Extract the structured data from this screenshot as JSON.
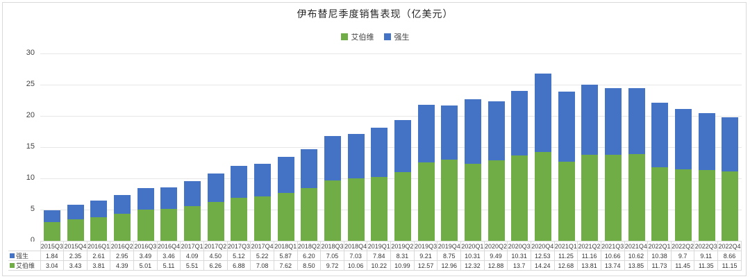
{
  "chart_data": {
    "type": "bar",
    "stacked": true,
    "title": "伊布替尼季度销售表现（亿美元）",
    "xlabel": "",
    "ylabel": "",
    "ylim": [
      0,
      30
    ],
    "yticks": [
      0,
      5,
      10,
      15,
      20,
      25,
      30
    ],
    "grid": true,
    "legend_position": "top",
    "categories": [
      "2015Q3",
      "2015Q4",
      "2016Q1",
      "2016Q2",
      "2016Q3",
      "2016Q4",
      "2017Q1",
      "2017Q2",
      "2017Q3",
      "2017Q4",
      "2018Q1",
      "2018Q2",
      "2018Q3",
      "2018Q4",
      "2019Q1",
      "2019Q2",
      "2019Q3",
      "2019Q4",
      "2020Q1",
      "2020Q2",
      "2020Q3",
      "2020Q4",
      "2021Q1",
      "2021Q2",
      "2021Q3",
      "2021Q4",
      "2022Q1",
      "2022Q2",
      "2022Q3",
      "2022Q4"
    ],
    "series": [
      {
        "key": "abbvie",
        "name": "艾伯维",
        "color": "#70AD47",
        "values": [
          3.04,
          3.43,
          3.81,
          4.39,
          5.01,
          5.11,
          5.51,
          6.26,
          6.88,
          7.08,
          7.62,
          8.5,
          9.72,
          10.06,
          10.22,
          10.99,
          12.57,
          12.96,
          12.32,
          12.88,
          13.7,
          14.24,
          12.68,
          13.81,
          13.74,
          13.85,
          11.73,
          11.45,
          11.35,
          11.15
        ]
      },
      {
        "key": "jnj",
        "name": "强生",
        "color": "#4472C4",
        "values": [
          1.84,
          2.35,
          2.61,
          2.95,
          3.49,
          3.46,
          4.09,
          4.5,
          5.12,
          5.22,
          5.87,
          6.2,
          7.05,
          7.03,
          7.84,
          8.31,
          9.21,
          8.75,
          10.31,
          9.49,
          10.31,
          12.53,
          11.25,
          11.16,
          10.66,
          10.62,
          10.38,
          9.7,
          9.11,
          8.66
        ]
      }
    ],
    "legend_order": [
      "abbvie",
      "jnj"
    ],
    "data_table": {
      "rows": [
        {
          "key": "jnj",
          "label": "强生",
          "color": "#4472C4",
          "values": [
            "1.84",
            "2.35",
            "2.61",
            "2.95",
            "3.49",
            "3.46",
            "4.09",
            "4.50",
            "5.12",
            "5.22",
            "5.87",
            "6.20",
            "7.05",
            "7.03",
            "7.84",
            "8.31",
            "9.21",
            "8.75",
            "10.31",
            "9.49",
            "10.31",
            "12.53",
            "11.25",
            "11.16",
            "10.66",
            "10.62",
            "10.38",
            "9.7",
            "9.11",
            "8.66"
          ]
        },
        {
          "key": "abbvie",
          "label": "艾伯维",
          "color": "#70AD47",
          "values": [
            "3.04",
            "3.43",
            "3.81",
            "4.39",
            "5.01",
            "5.11",
            "5.51",
            "6.26",
            "6.88",
            "7.08",
            "7.62",
            "8.50",
            "9.72",
            "10.06",
            "10.22",
            "10.99",
            "12.57",
            "12.96",
            "12.32",
            "12.88",
            "13.7",
            "14.24",
            "12.68",
            "13.81",
            "13.74",
            "13.85",
            "11.73",
            "11.45",
            "11.35",
            "11.15"
          ]
        }
      ]
    }
  }
}
